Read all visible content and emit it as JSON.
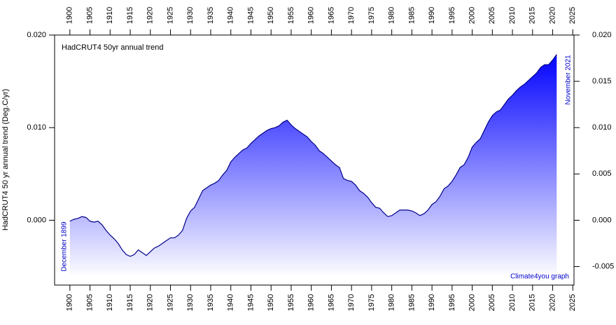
{
  "chart_data": {
    "type": "area",
    "title": "HadCRUT4 50yr annual trend",
    "y_label": "HadCRUT4 50 yr annual trend (Deg.C/yr)",
    "annotations": [
      "December 1899",
      "November 2021",
      "Climate4you graph"
    ],
    "color": "#0000ff",
    "line_color": "#00008b",
    "x": [
      1900,
      1901,
      1902,
      1903,
      1904,
      1905,
      1906,
      1907,
      1908,
      1909,
      1910,
      1911,
      1912,
      1913,
      1914,
      1915,
      1916,
      1917,
      1918,
      1919,
      1920,
      1921,
      1922,
      1923,
      1924,
      1925,
      1926,
      1927,
      1928,
      1929,
      1930,
      1931,
      1932,
      1933,
      1934,
      1935,
      1936,
      1937,
      1938,
      1939,
      1940,
      1941,
      1942,
      1943,
      1944,
      1945,
      1946,
      1947,
      1948,
      1949,
      1950,
      1951,
      1952,
      1953,
      1954,
      1955,
      1956,
      1957,
      1958,
      1959,
      1960,
      1961,
      1962,
      1963,
      1964,
      1965,
      1966,
      1967,
      1968,
      1969,
      1970,
      1971,
      1972,
      1973,
      1974,
      1975,
      1976,
      1977,
      1978,
      1979,
      1980,
      1981,
      1982,
      1983,
      1984,
      1985,
      1986,
      1987,
      1988,
      1989,
      1990,
      1991,
      1992,
      1993,
      1994,
      1995,
      1996,
      1997,
      1998,
      1999,
      2000,
      2001,
      2002,
      2003,
      2004,
      2005,
      2006,
      2007,
      2008,
      2009,
      2010,
      2011,
      2012,
      2013,
      2014,
      2015,
      2016,
      2017,
      2018,
      2019,
      2020,
      2021
    ],
    "values": [
      -0.0001,
      0.0001,
      0.0002,
      0.0004,
      0.0003,
      -0.0001,
      -0.0002,
      -0.0001,
      -0.0005,
      -0.0011,
      -0.0016,
      -0.002,
      -0.0025,
      -0.0032,
      -0.0037,
      -0.0039,
      -0.0037,
      -0.0032,
      -0.0035,
      -0.0038,
      -0.0034,
      -0.003,
      -0.0028,
      -0.0025,
      -0.0022,
      -0.0019,
      -0.0019,
      -0.0016,
      -0.0011,
      0.0002,
      0.001,
      0.0014,
      0.0023,
      0.0032,
      0.0035,
      0.0038,
      0.004,
      0.0043,
      0.0049,
      0.0054,
      0.0063,
      0.0068,
      0.0072,
      0.0076,
      0.0078,
      0.0083,
      0.0087,
      0.0091,
      0.0094,
      0.0097,
      0.0099,
      0.01,
      0.0102,
      0.0106,
      0.0108,
      0.0103,
      0.0099,
      0.0096,
      0.0093,
      0.009,
      0.0085,
      0.0081,
      0.0075,
      0.0072,
      0.0068,
      0.0064,
      0.006,
      0.0057,
      0.0045,
      0.0043,
      0.0042,
      0.0038,
      0.0032,
      0.0029,
      0.0025,
      0.0019,
      0.0014,
      0.0013,
      0.0008,
      0.0004,
      0.0005,
      0.0008,
      0.0011,
      0.0011,
      0.0011,
      0.001,
      0.0008,
      0.0005,
      0.0007,
      0.0011,
      0.0017,
      0.002,
      0.0026,
      0.0034,
      0.0037,
      0.0042,
      0.0049,
      0.0057,
      0.006,
      0.0068,
      0.0079,
      0.0084,
      0.0088,
      0.0097,
      0.0106,
      0.0113,
      0.0117,
      0.0119,
      0.0125,
      0.0131,
      0.0135,
      0.014,
      0.0144,
      0.0147,
      0.0151,
      0.0155,
      0.0159,
      0.0165,
      0.0168,
      0.0168,
      0.0173,
      0.0179
    ],
    "xlim": [
      1896.2,
      2025.3
    ],
    "xticks": [
      1900,
      1905,
      1910,
      1915,
      1920,
      1925,
      1930,
      1935,
      1940,
      1945,
      1950,
      1955,
      1960,
      1965,
      1970,
      1975,
      1980,
      1985,
      1990,
      1995,
      2000,
      2005,
      2010,
      2015,
      2020,
      2025
    ],
    "ylim": [
      -0.007,
      0.02
    ],
    "yticks": [
      {
        "value": 0,
        "label": "0.000"
      },
      {
        "value": 0.01,
        "label": "0.010"
      },
      {
        "value": 0.02,
        "label": "0.020"
      }
    ],
    "y2lim": [
      -0.007,
      0.02
    ],
    "y2ticks": [
      {
        "value": -0.005,
        "label": "-0.005"
      },
      {
        "value": 0,
        "label": "0.000"
      },
      {
        "value": 0.005,
        "label": "0.005"
      },
      {
        "value": 0.01,
        "label": "0.010"
      },
      {
        "value": 0.015,
        "label": "0.015"
      },
      {
        "value": 0.02,
        "label": "0.020"
      }
    ]
  }
}
